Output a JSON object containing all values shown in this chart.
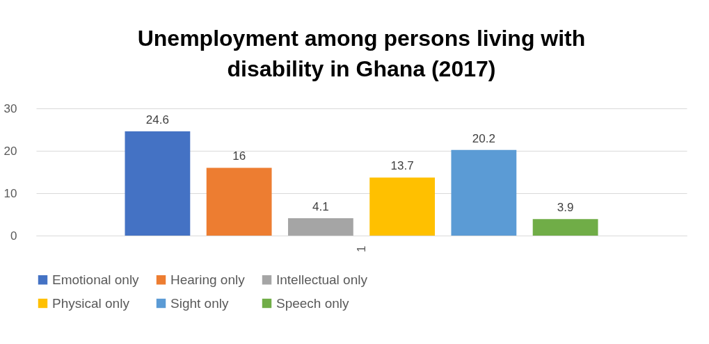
{
  "chart_data": {
    "type": "bar",
    "title": "Unemployment among persons living with disability in Ghana (2017)",
    "categories": [
      "1"
    ],
    "series": [
      {
        "name": "Emotional only",
        "color": "#4472c4",
        "values": [
          24.6
        ]
      },
      {
        "name": "Hearing only",
        "color": "#ed7d31",
        "values": [
          16
        ]
      },
      {
        "name": "Intellectual only",
        "color": "#a5a5a5",
        "values": [
          4.1
        ]
      },
      {
        "name": "Physical only",
        "color": "#ffc000",
        "values": [
          13.7
        ]
      },
      {
        "name": "Sight only",
        "color": "#5b9bd5",
        "values": [
          20.2
        ]
      },
      {
        "name": "Speech only",
        "color": "#70ad47",
        "values": [
          3.9
        ]
      }
    ],
    "ylim": [
      0,
      30
    ],
    "yticks": [
      0,
      10,
      20,
      30
    ],
    "grid": "y",
    "legend": "bottom",
    "data_labels": true
  }
}
